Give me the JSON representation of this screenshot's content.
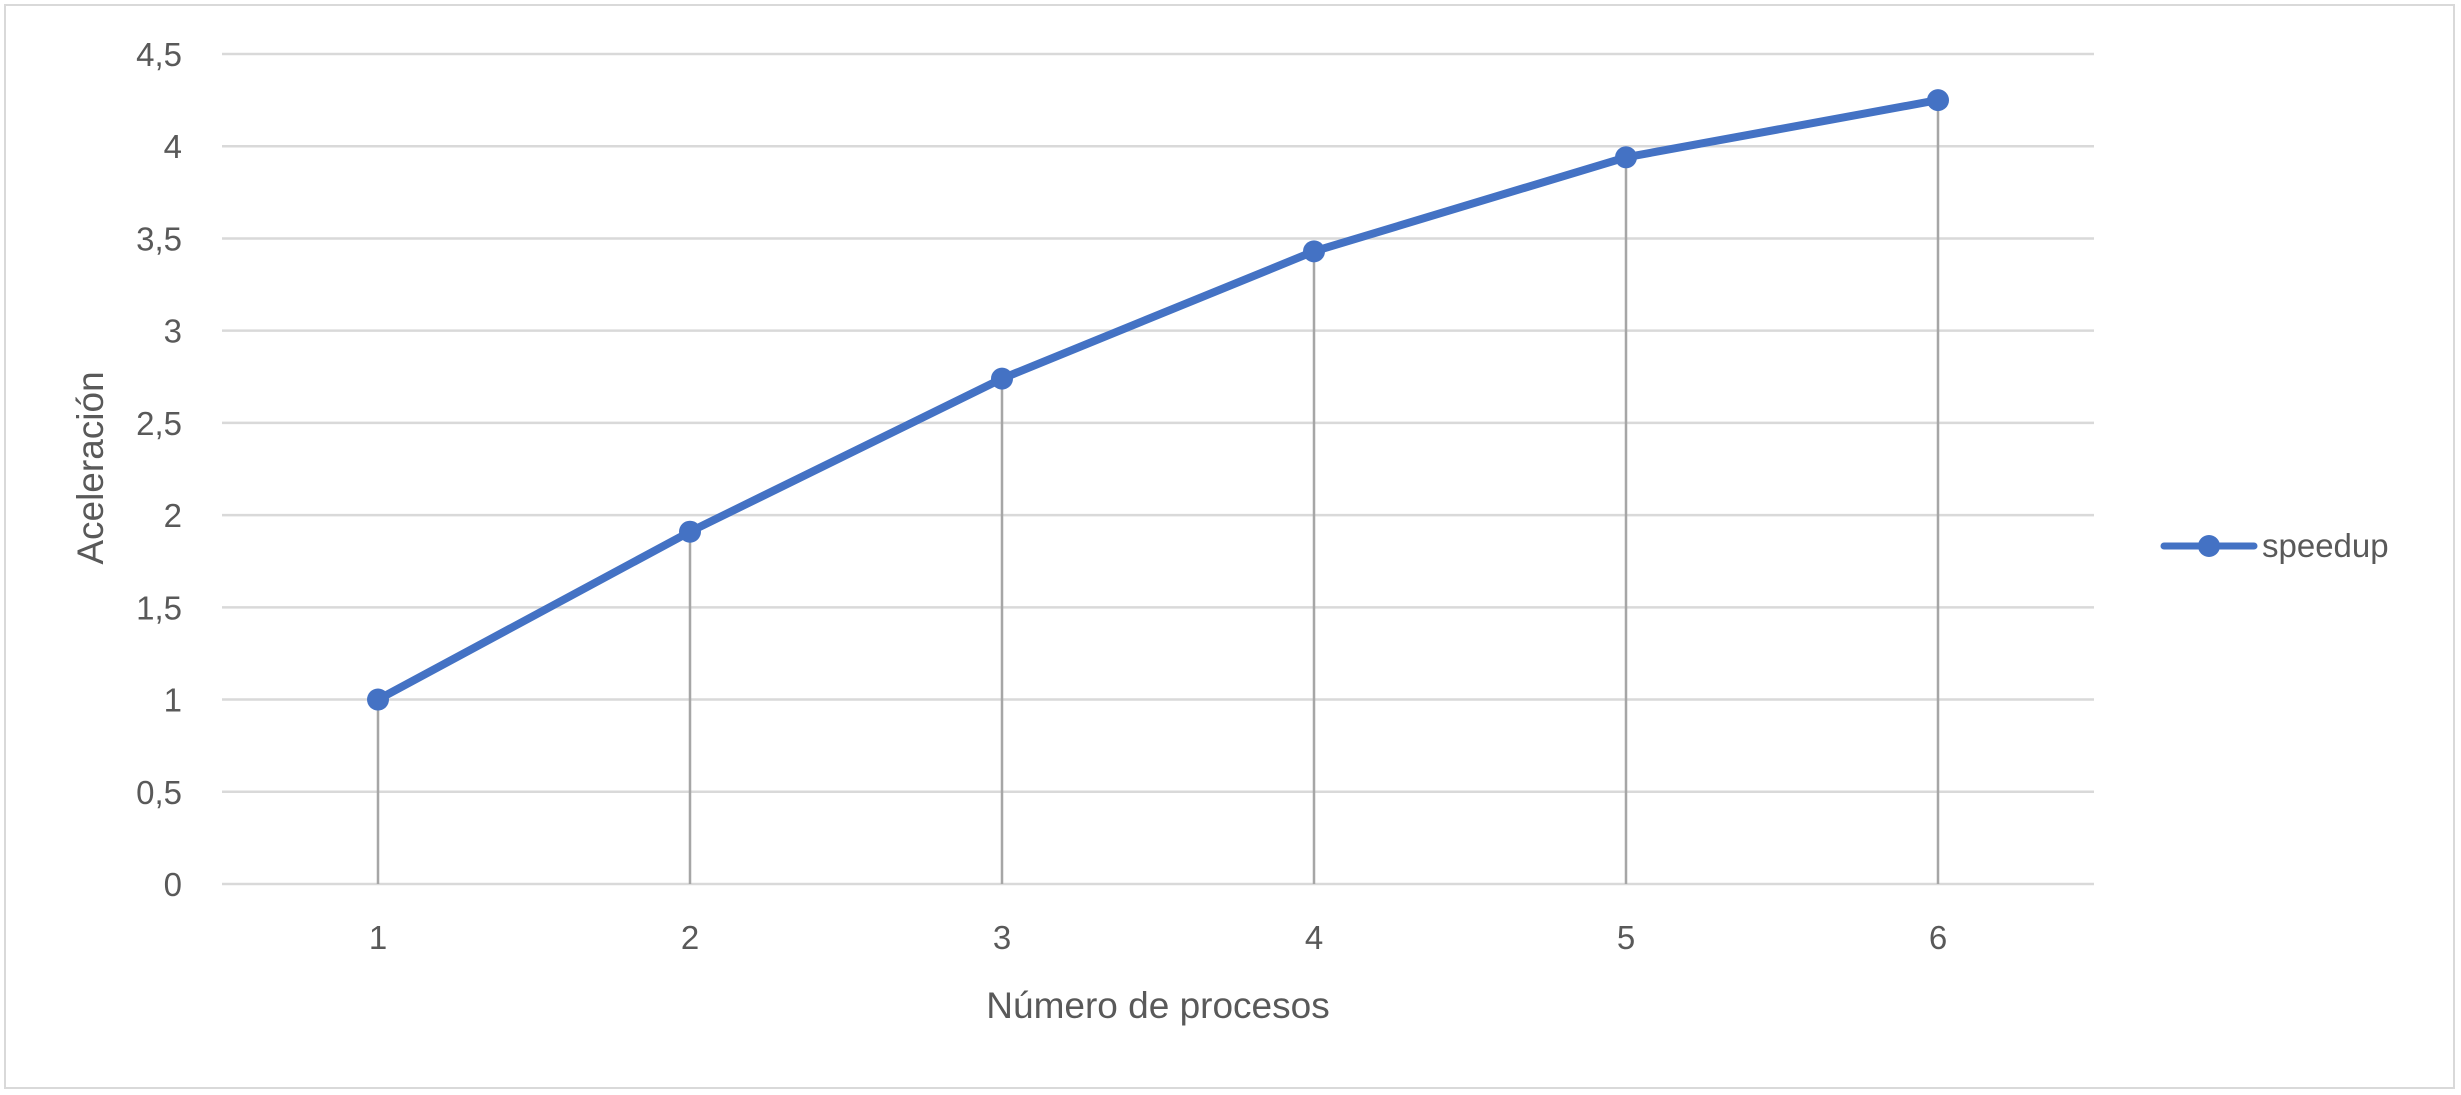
{
  "chart_data": {
    "type": "line",
    "xlabel": "Número de procesos",
    "ylabel": "Aceleración",
    "categories": [
      "1",
      "2",
      "3",
      "4",
      "5",
      "6"
    ],
    "x": [
      1,
      2,
      3,
      4,
      5,
      6
    ],
    "series": [
      {
        "name": "speedup",
        "values": [
          1.0,
          1.91,
          2.74,
          3.43,
          3.94,
          4.25
        ],
        "color": "#4472c4"
      }
    ],
    "ylim": [
      0,
      4.5
    ],
    "yticks": [
      "0",
      "0,5",
      "1",
      "1,5",
      "2",
      "2,5",
      "3",
      "3,5",
      "4",
      "4,5"
    ],
    "grid": true,
    "drop_lines": true,
    "legend_position": "right",
    "colors": {
      "line": "#4472c4",
      "grid": "#d9d9d9",
      "drop_line": "#a6a6a6",
      "text": "#595959"
    }
  }
}
